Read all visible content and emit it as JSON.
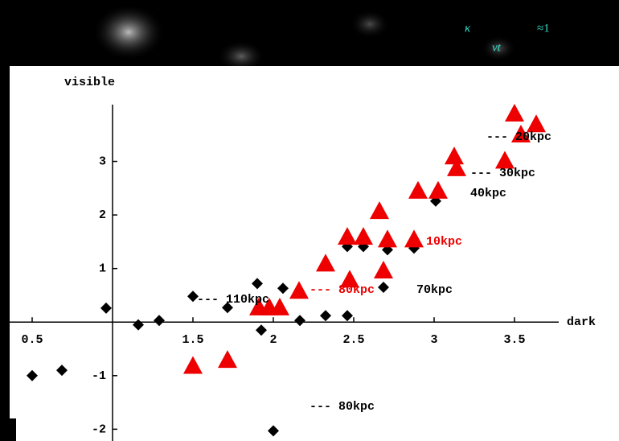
{
  "header": {
    "symbol": "κ",
    "subscript": "vt",
    "relation": "≈1"
  },
  "chart_data": {
    "type": "scatter",
    "x_label": "dark",
    "y_label": "visible",
    "xlim": [
      0.36,
      3.8
    ],
    "ylim": [
      -2.22,
      4
    ],
    "axes_origin": [
      1,
      0
    ],
    "xticks": [
      0.5,
      1.5,
      2,
      2.5,
      3,
      3.5
    ],
    "yticks": [
      -2,
      -1,
      1,
      2,
      3
    ],
    "grid": false,
    "series": [
      {
        "color": "#000000",
        "marker": "diamond",
        "x": [
          0.5,
          0.685,
          0.96,
          1.16,
          1.29,
          1.5,
          1.715,
          1.9,
          1.925,
          2.06,
          2.165,
          2.325,
          2.46,
          2.0,
          2.46,
          2.56,
          2.71,
          2.875,
          3.01,
          2.685
        ],
        "values": [
          -1,
          -0.9,
          0.26,
          -0.05,
          0.03,
          0.48,
          0.27,
          0.72,
          -0.15,
          0.63,
          0.03,
          0.12,
          0.12,
          -2.03,
          1.41,
          1.41,
          1.35,
          1.38,
          2.26,
          0.65
        ]
      },
      {
        "color": "#ee0000",
        "marker": "triangle",
        "x": [
          1.5,
          1.715,
          1.91,
          1.975,
          2.04,
          2.16,
          2.325,
          2.46,
          2.56,
          2.71,
          2.875,
          2.475,
          2.685,
          2.66,
          2.9,
          3.025,
          3.125,
          3.14,
          3.44,
          3.5,
          3.54,
          3.635
        ],
        "values": [
          -0.83,
          -0.72,
          0.26,
          0.26,
          0.26,
          0.57,
          1.08,
          1.58,
          1.58,
          1.53,
          1.53,
          0.78,
          0.95,
          2.06,
          2.44,
          2.44,
          3.08,
          2.86,
          3.0,
          3.88,
          3.49,
          3.68
        ]
      }
    ],
    "annotations": [
      {
        "text": "--- 20kpc",
        "color": "#000000"
      },
      {
        "text": "--- 30kpc",
        "color": "#000000"
      },
      {
        "text": "40kpc",
        "color": "#000000"
      },
      {
        "text": "10kpc",
        "color": "#ee0000"
      },
      {
        "text": "--- 110kpc",
        "color": "#000000"
      },
      {
        "text": "--- 80kpc",
        "color": "#ee0000"
      },
      {
        "text": "70kpc",
        "color": "#000000"
      },
      {
        "text": "--- 80kpc",
        "color": "#000000"
      }
    ]
  }
}
